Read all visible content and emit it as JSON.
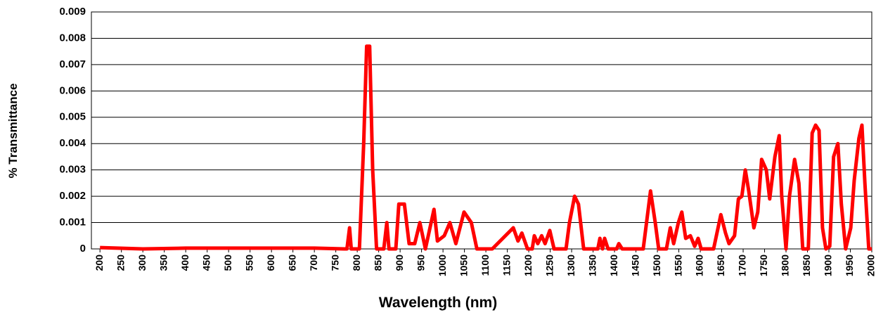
{
  "chart_data": {
    "type": "line",
    "xlabel": "Wavelength (nm)",
    "ylabel": "% Transmittance",
    "x": [
      200,
      300,
      400,
      500,
      600,
      700,
      770,
      776,
      782,
      786,
      805,
      815,
      822,
      829,
      836,
      845,
      862,
      869,
      874,
      890,
      897,
      910,
      921,
      934,
      946,
      959,
      979,
      987,
      1003,
      1016,
      1030,
      1049,
      1066,
      1079,
      1115,
      1164,
      1175,
      1184,
      1197,
      1208,
      1213,
      1221,
      1230,
      1238,
      1249,
      1259,
      1287,
      1295,
      1307,
      1316,
      1328,
      1361,
      1366,
      1372,
      1377,
      1385,
      1405,
      1410,
      1418,
      1467,
      1484,
      1495,
      1503,
      1521,
      1530,
      1538,
      1549,
      1557,
      1566,
      1577,
      1587,
      1595,
      1602,
      1631,
      1648,
      1659,
      1667,
      1680,
      1689,
      1697,
      1705,
      1713,
      1725,
      1734,
      1743,
      1754,
      1762,
      1774,
      1784,
      1790,
      1800,
      1808,
      1820,
      1830,
      1839,
      1852,
      1861,
      1869,
      1877,
      1885,
      1893,
      1902,
      1911,
      1921,
      1929,
      1939,
      1951,
      1959,
      1970,
      1977,
      1984,
      1993,
      2000
    ],
    "series": [
      {
        "name": "% Transmittance",
        "color": "#ff0000",
        "values": [
          5e-05,
          0,
          3e-05,
          3e-05,
          3e-05,
          3e-05,
          0,
          0,
          0.0008,
          0,
          0,
          0.004,
          0.0077,
          0.0077,
          0.003,
          0,
          0,
          0.001,
          0,
          0,
          0.0017,
          0.0017,
          0.0002,
          0.0002,
          0.001,
          0,
          0.0015,
          0.0003,
          0.0005,
          0.001,
          0.0002,
          0.0014,
          0.001,
          0,
          0,
          0.0008,
          0.0003,
          0.0006,
          0,
          0,
          0.0005,
          0.0002,
          0.0005,
          0.0002,
          0.0007,
          0,
          0,
          0.001,
          0.002,
          0.0017,
          0,
          0,
          0.0004,
          0,
          0.0004,
          0,
          0,
          0.0002,
          0,
          0,
          0.0022,
          0.001,
          0,
          0,
          0.0008,
          0.0002,
          0.001,
          0.0014,
          0.0004,
          0.0005,
          0.0001,
          0.0004,
          0,
          0,
          0.0013,
          0.0006,
          0.0002,
          0.0005,
          0.0019,
          0.002,
          0.003,
          0.0022,
          0.0008,
          0.0014,
          0.0034,
          0.003,
          0.0019,
          0.0035,
          0.0043,
          0.002,
          0,
          0.002,
          0.0034,
          0.0025,
          0,
          0,
          0.0044,
          0.0047,
          0.0045,
          0.0008,
          0,
          0.0001,
          0.0035,
          0.004,
          0.0017,
          0,
          0.0008,
          0.0026,
          0.0042,
          0.0047,
          0.0025,
          0,
          0
        ]
      }
    ],
    "xlim": [
      180,
      2000
    ],
    "xticks": [
      200,
      250,
      300,
      350,
      400,
      450,
      500,
      550,
      600,
      650,
      700,
      750,
      800,
      850,
      900,
      950,
      1000,
      1050,
      1100,
      1150,
      1200,
      1250,
      1300,
      1350,
      1400,
      1450,
      1500,
      1550,
      1600,
      1650,
      1700,
      1750,
      1800,
      1850,
      1900,
      1950,
      2000
    ],
    "ylim": [
      0,
      0.009
    ],
    "yticks": [
      0,
      0.001,
      0.002,
      0.003,
      0.004,
      0.005,
      0.006,
      0.007,
      0.008,
      0.009
    ],
    "grid": true
  }
}
